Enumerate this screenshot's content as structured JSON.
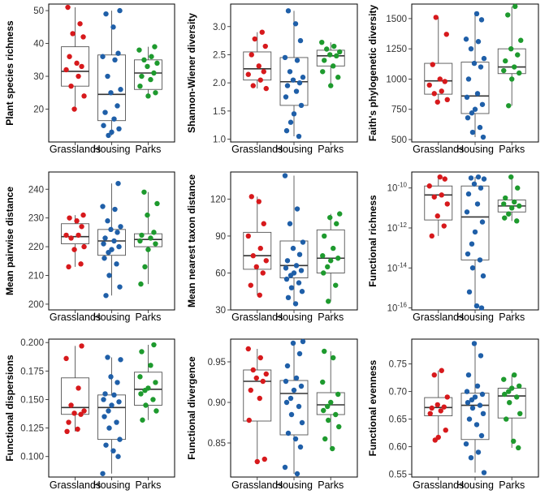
{
  "colors": {
    "Grasslands": "#d7191c",
    "Housing": "#1f5fa8",
    "Parks": "#1e9a2e"
  },
  "chart_data": [
    {
      "type": "scatter",
      "subtype": "box-with-jitter",
      "ylabel": "Plant species richness",
      "log": false,
      "ylim": [
        10,
        52
      ],
      "yticks": [
        20,
        30,
        40,
        50
      ],
      "ytick_labels": [
        "20",
        "30",
        "40",
        "50"
      ],
      "categories": [
        "Grasslands",
        "Housing",
        "Parks"
      ],
      "boxes": [
        {
          "q1": 27,
          "median": 31.5,
          "q3": 39,
          "lo": 20,
          "hi": 51
        },
        {
          "q1": 16.5,
          "median": 24.5,
          "q3": 36.5,
          "lo": 12,
          "hi": 50
        },
        {
          "q1": 26,
          "median": 31,
          "q3": 35,
          "lo": 24,
          "hi": 39
        }
      ],
      "points": [
        [
          51,
          46,
          43,
          42,
          36,
          34,
          33,
          32,
          30,
          27,
          24,
          20
        ],
        [
          50,
          49,
          45,
          37,
          36,
          35,
          30,
          26,
          25,
          21,
          19,
          17,
          15,
          14,
          13,
          12
        ],
        [
          39,
          38,
          36,
          35,
          34,
          33,
          31,
          30,
          29,
          27,
          25,
          24
        ]
      ]
    },
    {
      "type": "scatter",
      "subtype": "box-with-jitter",
      "ylabel": "Shannon-Wiener diversity",
      "log": false,
      "ylim": [
        0.95,
        3.4
      ],
      "yticks": [
        1.0,
        1.5,
        2.0,
        2.5,
        3.0
      ],
      "ytick_labels": [
        "1.0",
        "1.5",
        "2.0",
        "2.5",
        "3.0"
      ],
      "categories": [
        "Grasslands",
        "Housing",
        "Parks"
      ],
      "boxes": [
        {
          "q1": 2.05,
          "median": 2.25,
          "q3": 2.55,
          "lo": 1.9,
          "hi": 2.9
        },
        {
          "q1": 1.6,
          "median": 2.02,
          "q3": 2.45,
          "lo": 1.05,
          "hi": 3.28
        },
        {
          "q1": 2.3,
          "median": 2.48,
          "q3": 2.58,
          "lo": 1.95,
          "hi": 2.72
        }
      ],
      "points": [
        [
          2.9,
          2.78,
          2.65,
          2.5,
          2.3,
          2.2,
          2.15,
          2.05,
          1.95,
          1.9
        ],
        [
          3.28,
          3.05,
          2.75,
          2.45,
          2.4,
          2.2,
          2.1,
          2.05,
          2.0,
          1.95,
          1.85,
          1.75,
          1.6,
          1.45,
          1.3,
          1.15,
          1.05
        ],
        [
          2.72,
          2.65,
          2.6,
          2.55,
          2.5,
          2.48,
          2.4,
          2.3,
          2.2,
          2.1,
          1.95
        ]
      ]
    },
    {
      "type": "scatter",
      "subtype": "box-with-jitter",
      "ylabel": "Faith's phylogenetic diversity",
      "log": false,
      "ylim": [
        480,
        1620
      ],
      "yticks": [
        500,
        750,
        1000,
        1250,
        1500
      ],
      "ytick_labels": [
        "500",
        "750",
        "1000",
        "1250",
        "1500"
      ],
      "categories": [
        "Grasslands",
        "Housing",
        "Parks"
      ],
      "boxes": [
        {
          "q1": 875,
          "median": 985,
          "q3": 1130,
          "lo": 820,
          "hi": 1510
        },
        {
          "q1": 715,
          "median": 860,
          "q3": 1140,
          "lo": 520,
          "hi": 1540
        },
        {
          "q1": 1045,
          "median": 1100,
          "q3": 1250,
          "lo": 780,
          "hi": 1600
        }
      ],
      "points": [
        [
          1510,
          1370,
          1120,
          1000,
          980,
          950,
          900,
          880,
          830,
          810
        ],
        [
          1540,
          1490,
          1330,
          1310,
          1250,
          1170,
          1130,
          1100,
          1000,
          880,
          850,
          790,
          750,
          720,
          680,
          600,
          560,
          520
        ],
        [
          1600,
          1530,
          1320,
          1250,
          1200,
          1150,
          1100,
          1070,
          1050,
          1000,
          780
        ]
      ]
    },
    {
      "type": "scatter",
      "subtype": "box-with-jitter",
      "ylabel": "Mean pairwise distance",
      "log": false,
      "ylim": [
        198,
        246
      ],
      "yticks": [
        200,
        210,
        220,
        230,
        240
      ],
      "ytick_labels": [
        "200",
        "210",
        "220",
        "230",
        "240"
      ],
      "categories": [
        "Grasslands",
        "Housing",
        "Parks"
      ],
      "boxes": [
        {
          "q1": 221,
          "median": 223.5,
          "q3": 228,
          "lo": 213,
          "hi": 231
        },
        {
          "q1": 217,
          "median": 222,
          "q3": 226,
          "lo": 203,
          "hi": 242
        },
        {
          "q1": 220,
          "median": 222.5,
          "q3": 224.5,
          "lo": 207,
          "hi": 239
        }
      ],
      "points": [
        [
          231,
          230,
          229,
          227,
          224,
          224,
          223,
          220,
          219,
          214,
          213
        ],
        [
          242,
          234,
          233,
          229,
          227,
          226,
          225,
          223,
          222,
          221,
          220,
          219,
          218,
          216,
          214,
          210,
          206,
          203
        ],
        [
          239,
          235,
          231,
          225,
          224,
          223,
          222,
          221,
          219,
          213,
          207
        ]
      ]
    },
    {
      "type": "scatter",
      "subtype": "box-with-jitter",
      "ylabel": "Mean nearest taxon distance",
      "log": false,
      "ylim": [
        30,
        142
      ],
      "yticks": [
        30,
        60,
        90,
        120
      ],
      "ytick_labels": [
        "30",
        "60",
        "90",
        "120"
      ],
      "categories": [
        "Grasslands",
        "Housing",
        "Parks"
      ],
      "boxes": [
        {
          "q1": 63,
          "median": 74,
          "q3": 93,
          "lo": 42,
          "hi": 122
        },
        {
          "q1": 56,
          "median": 66,
          "q3": 86,
          "lo": 35,
          "hi": 139
        },
        {
          "q1": 60,
          "median": 72,
          "q3": 95,
          "lo": 37,
          "hi": 108
        }
      ],
      "points": [
        [
          122,
          118,
          100,
          90,
          80,
          74,
          70,
          65,
          60,
          50,
          42
        ],
        [
          139,
          112,
          100,
          85,
          80,
          75,
          70,
          66,
          64,
          62,
          60,
          58,
          55,
          52,
          48,
          45,
          40,
          35
        ],
        [
          108,
          105,
          100,
          90,
          80,
          74,
          72,
          70,
          65,
          60,
          50,
          37
        ]
      ]
    },
    {
      "type": "scatter",
      "subtype": "box-with-jitter",
      "ylabel": "Functional richness",
      "log": true,
      "ylim": [
        -16.1,
        -9.2
      ],
      "yticks": [
        -16,
        -14,
        -12,
        -10
      ],
      "ytick_labels": [
        "10^-16",
        "10^-14",
        "10^-12",
        "10^-10"
      ],
      "categories": [
        "Grasslands",
        "Housing",
        "Parks"
      ],
      "boxes": [
        {
          "q1": -11.6,
          "median": -10.35,
          "q3": -9.9,
          "lo": -12.4,
          "hi": -9.45
        },
        {
          "q1": -13.6,
          "median": -11.45,
          "q3": -9.9,
          "lo": -16.0,
          "hi": -9.45
        },
        {
          "q1": -11.2,
          "median": -10.9,
          "q3": -10.6,
          "lo": -11.65,
          "hi": -9.45
        }
      ],
      "points": [
        [
          -9.45,
          -9.55,
          -9.9,
          -10.35,
          -10.45,
          -10.8,
          -11.4,
          -11.9,
          -12.4
        ],
        [
          -9.45,
          -9.5,
          -9.55,
          -9.8,
          -10.0,
          -10.3,
          -10.8,
          -11.2,
          -11.7,
          -12.2,
          -12.8,
          -13.3,
          -13.6,
          -14.0,
          -14.4,
          -15.2,
          -15.9,
          -16.0
        ],
        [
          -9.45,
          -10.0,
          -10.5,
          -10.7,
          -10.8,
          -10.9,
          -11.0,
          -11.3,
          -11.5,
          -11.65
        ]
      ]
    },
    {
      "type": "scatter",
      "subtype": "box-with-jitter",
      "ylabel": "Functional dispersions",
      "log": false,
      "ylim": [
        0.082,
        0.203
      ],
      "yticks": [
        0.1,
        0.125,
        0.15,
        0.175,
        0.2
      ],
      "ytick_labels": [
        "0.100",
        "0.125",
        "0.150",
        "0.175",
        "0.200"
      ],
      "categories": [
        "Grasslands",
        "Housing",
        "Parks"
      ],
      "boxes": [
        {
          "q1": 0.137,
          "median": 0.143,
          "q3": 0.169,
          "lo": 0.122,
          "hi": 0.197
        },
        {
          "q1": 0.115,
          "median": 0.143,
          "q3": 0.154,
          "lo": 0.085,
          "hi": 0.187
        },
        {
          "q1": 0.145,
          "median": 0.159,
          "q3": 0.174,
          "lo": 0.132,
          "hi": 0.198
        }
      ],
      "points": [
        [
          0.197,
          0.186,
          0.16,
          0.145,
          0.14,
          0.138,
          0.137,
          0.13,
          0.124,
          0.122
        ],
        [
          0.187,
          0.185,
          0.17,
          0.165,
          0.155,
          0.154,
          0.15,
          0.148,
          0.145,
          0.14,
          0.135,
          0.13,
          0.125,
          0.115,
          0.11,
          0.105,
          0.1,
          0.085
        ],
        [
          0.198,
          0.192,
          0.18,
          0.17,
          0.165,
          0.16,
          0.158,
          0.155,
          0.15,
          0.145,
          0.14,
          0.132
        ]
      ]
    },
    {
      "type": "scatter",
      "subtype": "box-with-jitter",
      "ylabel": "Functional divergence",
      "log": false,
      "ylim": [
        0.808,
        0.978
      ],
      "yticks": [
        0.85,
        0.9,
        0.95
      ],
      "ytick_labels": [
        "0.85",
        "0.90",
        "0.95"
      ],
      "categories": [
        "Grasslands",
        "Housing",
        "Parks"
      ],
      "boxes": [
        {
          "q1": 0.877,
          "median": 0.926,
          "q3": 0.94,
          "lo": 0.827,
          "hi": 0.966
        },
        {
          "q1": 0.86,
          "median": 0.911,
          "q3": 0.927,
          "lo": 0.812,
          "hi": 0.975
        },
        {
          "q1": 0.885,
          "median": 0.897,
          "q3": 0.912,
          "lo": 0.843,
          "hi": 0.963
        }
      ],
      "points": [
        [
          0.966,
          0.955,
          0.94,
          0.935,
          0.93,
          0.926,
          0.915,
          0.905,
          0.878,
          0.83,
          0.827
        ],
        [
          0.975,
          0.973,
          0.96,
          0.945,
          0.93,
          0.926,
          0.92,
          0.915,
          0.905,
          0.9,
          0.895,
          0.885,
          0.875,
          0.862,
          0.855,
          0.845,
          0.82,
          0.812
        ],
        [
          0.963,
          0.955,
          0.925,
          0.91,
          0.9,
          0.895,
          0.89,
          0.885,
          0.878,
          0.87,
          0.855,
          0.843
        ]
      ]
    },
    {
      "type": "scatter",
      "subtype": "box-with-jitter",
      "ylabel": "Functional evenness",
      "log": false,
      "ylim": [
        0.545,
        0.795
      ],
      "yticks": [
        0.55,
        0.6,
        0.65,
        0.7,
        0.75
      ],
      "ytick_labels": [
        "0.55",
        "0.60",
        "0.65",
        "0.70",
        "0.75"
      ],
      "categories": [
        "Grasslands",
        "Housing",
        "Parks"
      ],
      "boxes": [
        {
          "q1": 0.656,
          "median": 0.671,
          "q3": 0.689,
          "lo": 0.612,
          "hi": 0.738
        },
        {
          "q1": 0.613,
          "median": 0.675,
          "q3": 0.697,
          "lo": 0.553,
          "hi": 0.787
        },
        {
          "q1": 0.652,
          "median": 0.692,
          "q3": 0.706,
          "lo": 0.598,
          "hi": 0.73
        }
      ],
      "points": [
        [
          0.738,
          0.73,
          0.69,
          0.676,
          0.672,
          0.67,
          0.665,
          0.66,
          0.63,
          0.617,
          0.612
        ],
        [
          0.787,
          0.765,
          0.73,
          0.71,
          0.7,
          0.695,
          0.69,
          0.685,
          0.68,
          0.675,
          0.67,
          0.66,
          0.65,
          0.64,
          0.62,
          0.605,
          0.59,
          0.58,
          0.553
        ],
        [
          0.73,
          0.722,
          0.71,
          0.706,
          0.7,
          0.695,
          0.69,
          0.68,
          0.66,
          0.65,
          0.61,
          0.598
        ]
      ]
    }
  ]
}
